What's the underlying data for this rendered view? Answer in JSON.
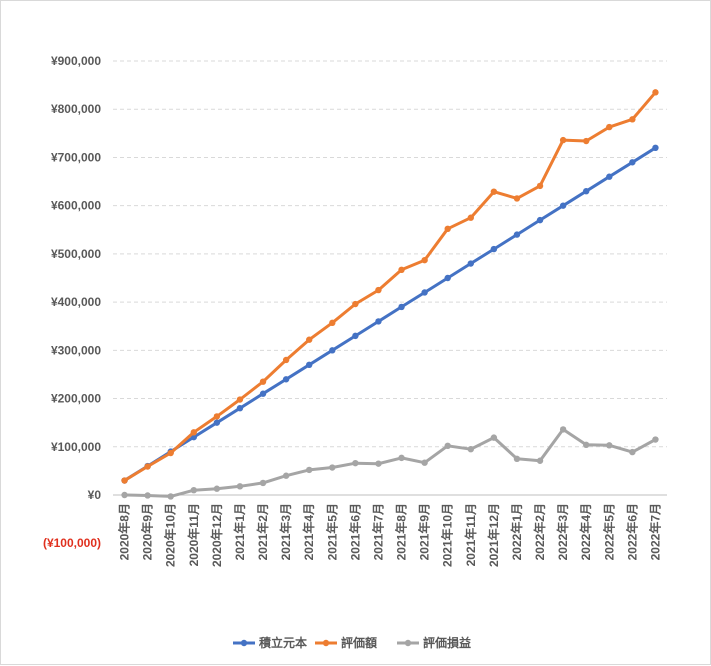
{
  "chart_data": {
    "type": "line",
    "title": "",
    "xlabel": "",
    "ylabel": "",
    "ylim": [
      -100000,
      900000
    ],
    "grid": true,
    "legend_position": "bottom",
    "y_ticks": [
      {
        "value": 900000,
        "label": "¥900,000"
      },
      {
        "value": 800000,
        "label": "¥800,000"
      },
      {
        "value": 700000,
        "label": "¥700,000"
      },
      {
        "value": 600000,
        "label": "¥600,000"
      },
      {
        "value": 500000,
        "label": "¥500,000"
      },
      {
        "value": 400000,
        "label": "¥400,000"
      },
      {
        "value": 300000,
        "label": "¥300,000"
      },
      {
        "value": 200000,
        "label": "¥200,000"
      },
      {
        "value": 100000,
        "label": "¥100,000"
      },
      {
        "value": 0,
        "label": "¥0"
      },
      {
        "value": -100000,
        "label": "(¥100,000)"
      }
    ],
    "categories": [
      "2020年8月",
      "2020年9月",
      "2020年10月",
      "2020年11月",
      "2020年12月",
      "2021年1月",
      "2021年2月",
      "2021年3月",
      "2021年4月",
      "2021年5月",
      "2021年6月",
      "2021年7月",
      "2021年8月",
      "2021年9月",
      "2021年10月",
      "2021年11月",
      "2021年12月",
      "2022年1月",
      "2022年2月",
      "2022年3月",
      "2022年4月",
      "2022年5月",
      "2022年6月",
      "2022年7月"
    ],
    "series": [
      {
        "name": "積立元本",
        "color": "#4472c4",
        "values": [
          30000,
          60000,
          90000,
          120000,
          150000,
          180000,
          210000,
          240000,
          270000,
          300000,
          330000,
          360000,
          390000,
          420000,
          450000,
          480000,
          510000,
          540000,
          570000,
          600000,
          630000,
          660000,
          690000,
          720000
        ]
      },
      {
        "name": "評価額",
        "color": "#ed7d31",
        "values": [
          30000,
          59000,
          87000,
          130000,
          163000,
          198000,
          235000,
          280000,
          322000,
          357000,
          396000,
          425000,
          467000,
          487000,
          552000,
          575000,
          629000,
          615000,
          641000,
          736000,
          734000,
          763000,
          779000,
          835000
        ]
      },
      {
        "name": "評価損益",
        "color": "#a5a5a5",
        "values": [
          0,
          -1000,
          -3000,
          10000,
          13000,
          18000,
          25000,
          40000,
          52000,
          57000,
          66000,
          65000,
          77000,
          67000,
          102000,
          95000,
          119000,
          75000,
          71000,
          136000,
          104000,
          103000,
          89000,
          115000
        ]
      }
    ]
  }
}
